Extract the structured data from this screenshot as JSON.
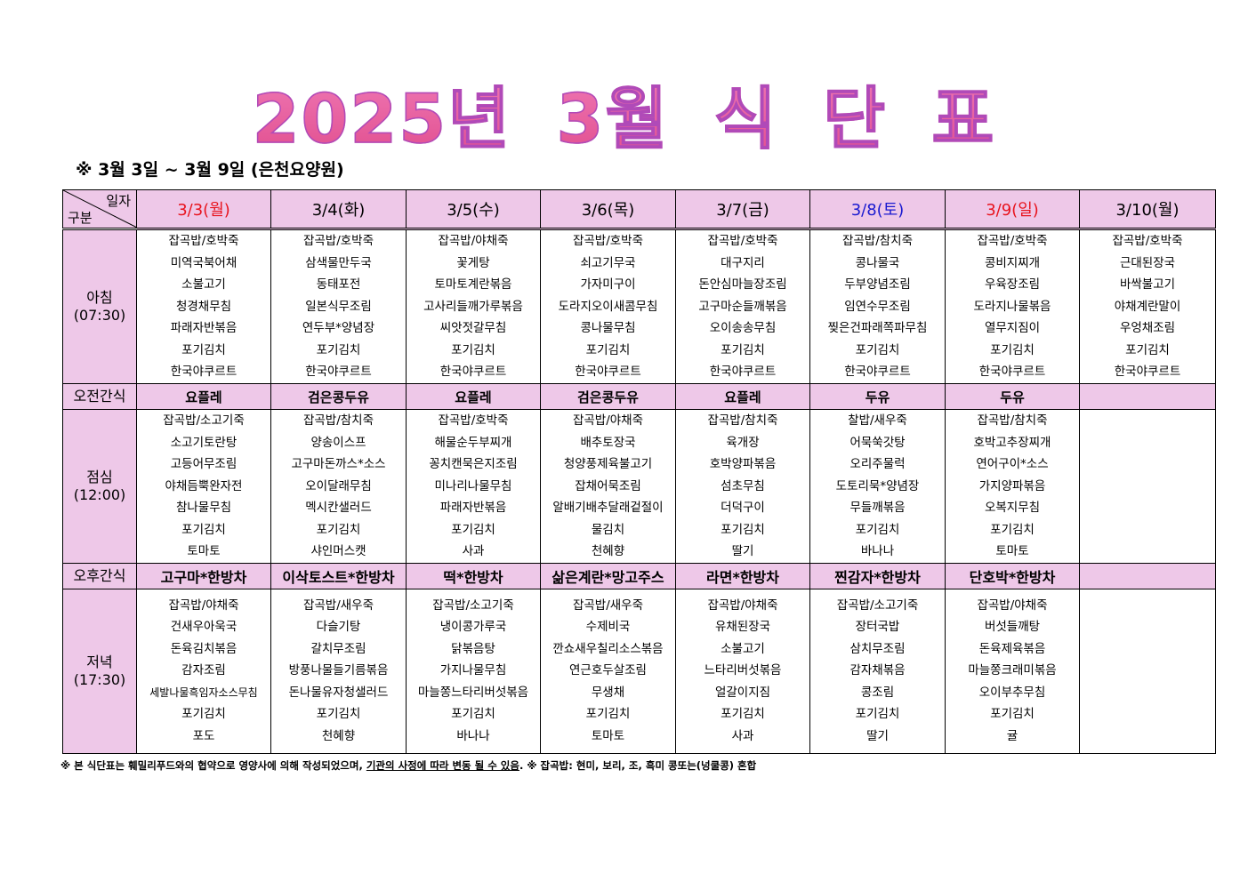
{
  "title": "2025년 3월 식 단 표",
  "subtitle": "※  3월  3일  ~  3월  9일  (은천요양원)",
  "corner": {
    "top": "일자",
    "bottom": "구분"
  },
  "colors": {
    "title": "#e8619f",
    "header_bg": "#eec8e8",
    "sunday_holiday": "#e8141e",
    "saturday": "#1a1ad0"
  },
  "days": [
    {
      "label": "3/3(월)",
      "color": "#e8141e"
    },
    {
      "label": "3/4(화)",
      "color": "#000000"
    },
    {
      "label": "3/5(수)",
      "color": "#000000"
    },
    {
      "label": "3/6(목)",
      "color": "#000000"
    },
    {
      "label": "3/7(금)",
      "color": "#000000"
    },
    {
      "label": "3/8(토)",
      "color": "#1a1ad0"
    },
    {
      "label": "3/9(일)",
      "color": "#e8141e"
    },
    {
      "label": "3/10(월)",
      "color": "#000000"
    }
  ],
  "breakfast": {
    "label": "아침",
    "time": "(07:30)",
    "days": [
      [
        "잡곡밥/호박죽",
        "미역국북어채",
        "소불고기",
        "청경채무침",
        "파래자반볶음",
        "포기김치",
        "한국야쿠르트"
      ],
      [
        "잡곡밥/호박죽",
        "삼색물만두국",
        "동태포전",
        "일본식무조림",
        "연두부*양념장",
        "포기김치",
        "한국야쿠르트"
      ],
      [
        "잡곡밥/야채죽",
        "꽃게탕",
        "토마토계란볶음",
        "고사리들깨가루볶음",
        "씨앗젓갈무침",
        "포기김치",
        "한국야쿠르트"
      ],
      [
        "잡곡밥/호박죽",
        "쇠고기무국",
        "가자미구이",
        "도라지오이새콤무침",
        "콩나물무침",
        "포기김치",
        "한국야쿠르트"
      ],
      [
        "잡곡밥/호박죽",
        "대구지리",
        "돈안심마늘장조림",
        "고구마순들깨볶음",
        "오이송송무침",
        "포기김치",
        "한국야쿠르트"
      ],
      [
        "잡곡밥/참치죽",
        "콩나물국",
        "두부양념조림",
        "임연수무조림",
        "찢은건파래쪽파무침",
        "포기김치",
        "한국야쿠르트"
      ],
      [
        "잡곡밥/호박죽",
        "콩비지찌개",
        "우육장조림",
        "도라지나물볶음",
        "열무지짐이",
        "포기김치",
        "한국야쿠르트"
      ],
      [
        "잡곡밥/호박죽",
        "근대된장국",
        "바싹불고기",
        "야채계란말이",
        "우엉채조림",
        "포기김치",
        "한국야쿠르트"
      ]
    ]
  },
  "morning_snack": {
    "label": "오전간식",
    "days": [
      "요플레",
      "검은콩두유",
      "요플레",
      "검은콩두유",
      "요플레",
      "두유",
      "두유",
      ""
    ]
  },
  "lunch": {
    "label": "점심",
    "time": "(12:00)",
    "days": [
      [
        "잡곡밥/소고기죽",
        "소고기토란탕",
        "고등어무조림",
        "야채듬뿍완자전",
        "참나물무침",
        "포기김치",
        "토마토"
      ],
      [
        "잡곡밥/참치죽",
        "양송이스프",
        "고구마돈까스*소스",
        "오이달래무침",
        "멕시칸샐러드",
        "포기김치",
        "샤인머스캣"
      ],
      [
        "잡곡밥/호박죽",
        "해물순두부찌개",
        "꽁치캔묵은지조림",
        "미나리나물무침",
        "파래자반볶음",
        "포기김치",
        "사과"
      ],
      [
        "잡곡밥/야채죽",
        "배추토장국",
        "청양풍제육불고기",
        "잡채어묵조림",
        "알배기배추달래겉절이",
        "물김치",
        "천혜향"
      ],
      [
        "잡곡밥/참치죽",
        "육개장",
        "호박양파볶음",
        "섬초무침",
        "더덕구이",
        "포기김치",
        "딸기"
      ],
      [
        "찰밥/새우죽",
        "어묵쑥갓탕",
        "오리주물럭",
        "도토리묵*양념장",
        "무들깨볶음",
        "포기김치",
        "바나나"
      ],
      [
        "잡곡밥/참치죽",
        "호박고추장찌개",
        "연어구이*소스",
        "가지양파볶음",
        "오복지무침",
        "포기김치",
        "토마토"
      ],
      []
    ]
  },
  "afternoon_snack": {
    "label": "오후간식",
    "days": [
      "고구마*한방차",
      "이삭토스트*한방차",
      "떡*한방차",
      "삶은계란*망고주스",
      "라면*한방차",
      "찐감자*한방차",
      "단호박*한방차",
      ""
    ]
  },
  "dinner": {
    "label": "저녁",
    "time": "(17:30)",
    "days": [
      [
        "잡곡밥/야채죽",
        "건새우아욱국",
        "돈육김치볶음",
        "감자조림",
        "세발나물흑임자소스무침",
        "포기김치",
        "포도"
      ],
      [
        "잡곡밥/새우죽",
        "다슬기탕",
        "갈치무조림",
        "방풍나물들기름볶음",
        "돈나물유자청샐러드",
        "포기김치",
        "천혜향"
      ],
      [
        "잡곡밥/소고기죽",
        "냉이콩가루국",
        "닭볶음탕",
        "가지나물무침",
        "마늘쫑느타리버섯볶음",
        "포기김치",
        "바나나"
      ],
      [
        "잡곡밥/새우죽",
        "수제비국",
        "깐쇼새우칠리소스볶음",
        "연근호두살조림",
        "무생채",
        "포기김치",
        "토마토"
      ],
      [
        "잡곡밥/야채죽",
        "유채된장국",
        "소불고기",
        "느타리버섯볶음",
        "얼갈이지짐",
        "포기김치",
        "사과"
      ],
      [
        "잡곡밥/소고기죽",
        "장터국밥",
        "삼치무조림",
        "감자채볶음",
        "콩조림",
        "포기김치",
        "딸기"
      ],
      [
        "잡곡밥/야채죽",
        "버섯들깨탕",
        "돈육제육볶음",
        "마늘쫑크래미볶음",
        "오이부추무침",
        "포기김치",
        "귤"
      ],
      []
    ]
  },
  "footer": {
    "part1": "※ 본 식단표는 훼밀리푸드와의 협약으로 영양사에 의해 작성되었으며, ",
    "part2": "기관의 사정에 따라 변동 될 수 있음",
    "part3": ". ※ 잡곡밥: 현미, 보리, 조, 흑미 콩또는(넝쿨콩) 혼합"
  }
}
